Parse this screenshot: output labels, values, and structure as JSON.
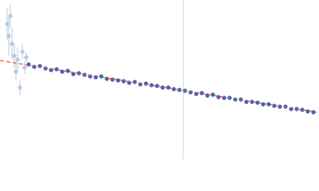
{
  "chart_data": {
    "type": "scatter",
    "xlim": [
      0,
      400
    ],
    "ylim": [
      0,
      200
    ],
    "vline": {
      "x": 230,
      "color": "#c8d4e8"
    },
    "fit": {
      "color": "#e05050",
      "x": [
        0,
        397
      ],
      "values": [
        124,
        59
      ]
    },
    "series": [
      {
        "color": "#b8c7e0",
        "x": [
          9,
          11,
          13,
          15,
          18,
          20,
          22,
          25,
          28,
          31,
          33
        ],
        "values": [
          170,
          155,
          180,
          145,
          130,
          110,
          125,
          90,
          135,
          115,
          128
        ],
        "errors": [
          20,
          25,
          15,
          20,
          15,
          12,
          15,
          10,
          10,
          8,
          6
        ]
      },
      {
        "color": "#3a65b8",
        "x": [
          36,
          43,
          50,
          57,
          64,
          71,
          78,
          85,
          92,
          99,
          106,
          113,
          120,
          127,
          134,
          141,
          148,
          155,
          162,
          169,
          176,
          183,
          190,
          197,
          204,
          211,
          218,
          225,
          232,
          239,
          246,
          253,
          260,
          267,
          274,
          281,
          288,
          295,
          302,
          309,
          316,
          323,
          330,
          337,
          344,
          351,
          358,
          365,
          372,
          379,
          386,
          393
        ],
        "values": [
          119,
          116,
          117,
          114,
          112,
          113,
          110,
          111,
          107,
          108,
          106,
          104,
          103,
          104,
          101,
          100,
          99,
          98,
          96,
          97,
          94,
          95,
          93,
          92,
          90,
          90,
          88,
          87,
          86,
          84,
          82,
          83,
          80,
          81,
          78,
          77,
          77,
          75,
          75,
          72,
          72,
          71,
          69,
          69,
          67,
          66,
          66,
          63,
          63,
          62,
          60,
          59
        ]
      }
    ]
  }
}
